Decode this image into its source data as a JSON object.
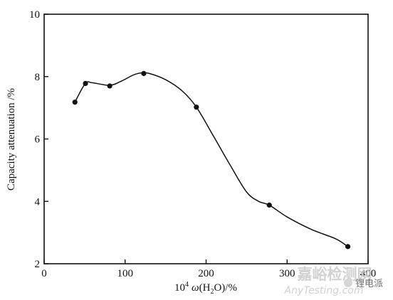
{
  "chart_data": {
    "type": "line",
    "ylabel": "Capacity attenuation /%",
    "xlabel_prefix": "10",
    "xlabel_exponent": "4",
    "xlabel_symbol": "ω",
    "xlabel_body": "(H",
    "xlabel_subscript": "2",
    "xlabel_suffix": "O)/%",
    "xlim": [
      0,
      400
    ],
    "ylim": [
      2,
      10
    ],
    "xticks": [
      0,
      100,
      200,
      300,
      400
    ],
    "yticks": [
      2,
      4,
      6,
      8,
      10
    ],
    "xtick_labels": [
      "0",
      "100",
      "200",
      "300",
      "400"
    ],
    "ytick_labels": [
      "2",
      "4",
      "6",
      "8",
      "10"
    ],
    "grid": false,
    "series": [
      {
        "x": [
          38,
          51,
          81,
          123,
          188,
          278,
          375
        ],
        "y": [
          7.18,
          7.78,
          7.7,
          8.1,
          7.02,
          3.88,
          2.55
        ]
      }
    ],
    "smooth_curve": {
      "x": [
        38,
        51,
        60,
        81,
        95,
        110,
        120,
        130,
        150,
        170,
        188,
        210,
        230,
        250,
        265,
        278,
        300,
        330,
        360,
        375
      ],
      "y": [
        7.18,
        7.78,
        7.8,
        7.72,
        7.85,
        8.05,
        8.12,
        8.1,
        7.9,
        7.55,
        7.02,
        6.05,
        5.15,
        4.3,
        4.0,
        3.88,
        3.5,
        3.1,
        2.8,
        2.55
      ]
    }
  },
  "colors": {
    "ink": "#111111",
    "watermark": "#c9c9c9"
  },
  "watermark": {
    "line1": "嘉峪检测网",
    "line2": "AnyTesting.com",
    "badge": "锂电派"
  }
}
